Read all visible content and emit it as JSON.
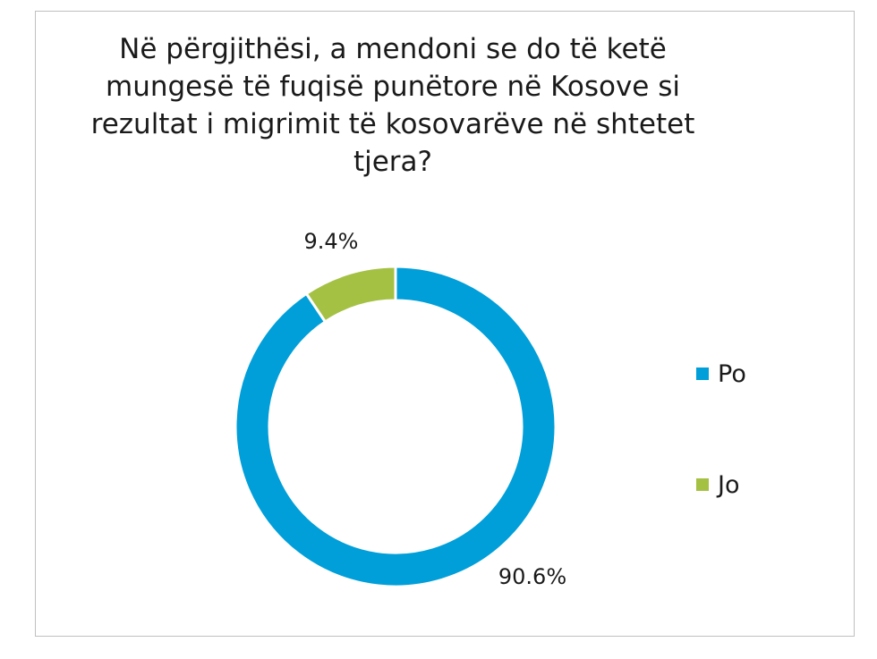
{
  "chart_data": {
    "type": "pie",
    "variant": "donut",
    "title_lines": [
      "Në përgjithësi, a mendoni se do të ketë",
      "mungesë të fuqisë punëtore në Kosove si",
      "rezultat i migrimit të kosovarëve në shtetet",
      "tjera?"
    ],
    "categories": [
      "Po",
      "Jo"
    ],
    "values": [
      90.6,
      9.4
    ],
    "data_labels": [
      "90.6%",
      "9.4%"
    ],
    "colors": [
      "#009fd9",
      "#a4c144"
    ],
    "legend_position": "right"
  }
}
